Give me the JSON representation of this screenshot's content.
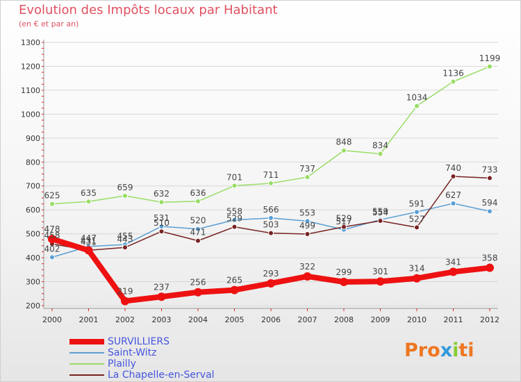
{
  "header": {
    "title": "Evolution des Impôts locaux par Habitant",
    "subtitle": "(en € et par an)"
  },
  "logo": {
    "text": "Proxiti",
    "colors": [
      "#ee7722",
      "#ee7722",
      "#ee7722",
      "#3399dd",
      "#88cc33",
      "#ee7722",
      "#ee7722"
    ]
  },
  "colors": {
    "title": "#e05060",
    "axis_accent": "#e02020",
    "legend_text": "#4455dd",
    "grid": "#d8d8d8"
  },
  "chart_data": {
    "type": "line",
    "title": "Evolution des Impôts locaux par Habitant",
    "subtitle": "(en € et par an)",
    "xlabel": "",
    "ylabel": "",
    "x": [
      2000,
      2001,
      2002,
      2003,
      2004,
      2005,
      2006,
      2007,
      2008,
      2009,
      2010,
      2011,
      2012
    ],
    "ylim": [
      200,
      1300
    ],
    "yticks": [
      200,
      300,
      400,
      500,
      600,
      700,
      800,
      900,
      1000,
      1100,
      1200,
      1300
    ],
    "grid": "horizontal",
    "legend_position": "bottom-left",
    "series": [
      {
        "name": "SURVILLIERS",
        "color": "#ee1111",
        "emphasis": true,
        "values": [
          478,
          431,
          219,
          237,
          256,
          265,
          293,
          322,
          299,
          301,
          314,
          341,
          358
        ]
      },
      {
        "name": "Saint-Witz",
        "color": "#5a9fd4",
        "values": [
          402,
          447,
          455,
          531,
          520,
          558,
          566,
          553,
          517,
          559,
          591,
          627,
          594
        ]
      },
      {
        "name": "Plailly",
        "color": "#99dd66",
        "values": [
          625,
          635,
          659,
          632,
          636,
          701,
          711,
          737,
          848,
          834,
          1034,
          1136,
          1199
        ]
      },
      {
        "name": "La Chapelle-en-Serval",
        "color": "#772222",
        "values": [
          458,
          431,
          443,
          510,
          471,
          529,
          503,
          499,
          529,
          554,
          527,
          740,
          733
        ]
      }
    ]
  }
}
